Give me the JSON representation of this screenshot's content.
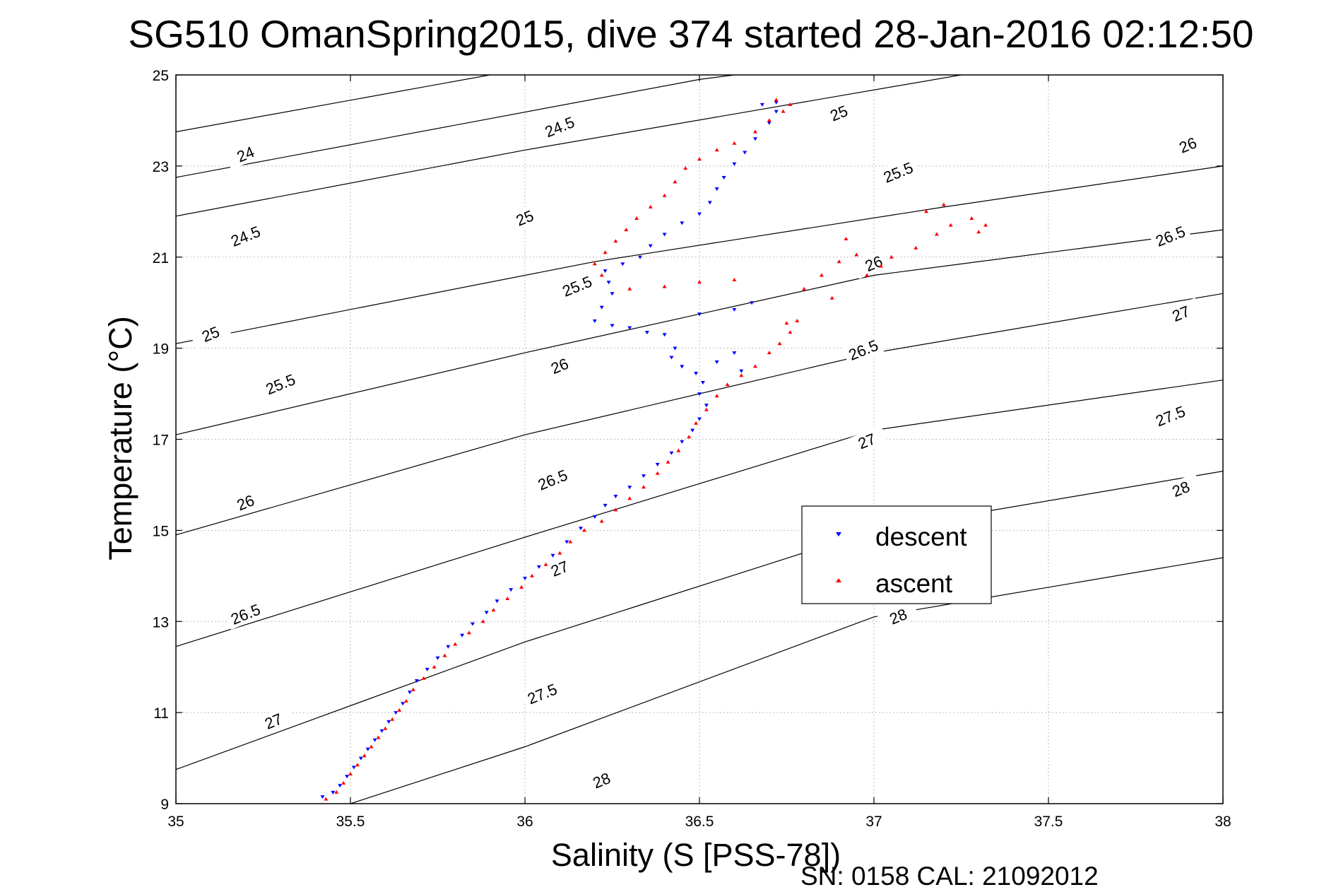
{
  "chart_data": {
    "type": "scatter",
    "title": "SG510 OmanSpring2015, dive 374 started 28-Jan-2016 02:12:50",
    "xlabel": "Salinity (S [PSS-78])",
    "ylabel": "Temperature (°C)",
    "xlim": [
      35,
      38
    ],
    "ylim": [
      9,
      25
    ],
    "x_ticks": [
      "35",
      "35.5",
      "36",
      "36.5",
      "37",
      "37.5",
      "38"
    ],
    "y_ticks": [
      "9",
      "11",
      "13",
      "15",
      "17",
      "19",
      "21",
      "23",
      "25"
    ],
    "grid": true,
    "legend": {
      "placement": "right",
      "entries": [
        {
          "label": "descent",
          "color": "#0000ff",
          "marker": "triangle-down"
        },
        {
          "label": "ascent",
          "color": "#ff0000",
          "marker": "triangle-up"
        }
      ]
    },
    "contours": [
      {
        "label": "24",
        "lines": [
          [
            [
              35,
              23.75
            ],
            [
              35.9,
              25
            ]
          ]
        ]
      },
      {
        "label": "24.5",
        "lines": [
          [
            [
              35,
              22.75
            ],
            [
              36.5,
              24.9
            ],
            [
              36.6,
              25
            ]
          ]
        ]
      },
      {
        "label": "25",
        "lines": [
          [
            [
              35,
              21.9
            ],
            [
              36.0,
              23.35
            ],
            [
              37.25,
              25
            ]
          ]
        ]
      },
      {
        "label": "25.5",
        "lines": [
          [
            [
              35,
              19.1
            ],
            [
              36.2,
              20.9
            ],
            [
              37.2,
              22.1
            ],
            [
              38,
              23
            ]
          ]
        ]
      },
      {
        "label": "26",
        "lines": [
          [
            [
              35,
              17.1
            ],
            [
              36.0,
              18.9
            ],
            [
              37.0,
              20.6
            ],
            [
              38,
              21.6
            ]
          ]
        ]
      },
      {
        "label": "26.5",
        "lines": [
          [
            [
              35,
              14.9
            ],
            [
              36.0,
              17.1
            ],
            [
              37.0,
              18.9
            ],
            [
              38,
              20.2
            ]
          ]
        ]
      },
      {
        "label": "27",
        "lines": [
          [
            [
              35,
              12.45
            ],
            [
              36.0,
              14.85
            ],
            [
              37.0,
              17.2
            ],
            [
              38,
              18.3
            ]
          ]
        ]
      },
      {
        "label": "27.5",
        "lines": [
          [
            [
              35,
              9.75
            ],
            [
              36.0,
              12.55
            ],
            [
              37.0,
              15.0
            ],
            [
              38,
              16.3
            ]
          ]
        ]
      },
      {
        "label": "28",
        "lines": [
          [
            [
              35.5,
              9.0
            ],
            [
              36.0,
              10.25
            ],
            [
              37.0,
              13.1
            ],
            [
              38,
              14.4
            ]
          ]
        ]
      }
    ],
    "contour_labels": [
      {
        "text": "24",
        "x": 35.2,
        "y": 23.25
      },
      {
        "text": "24.5",
        "x": 36.1,
        "y": 23.85
      },
      {
        "text": "25",
        "x": 36.9,
        "y": 24.15
      },
      {
        "text": "24.5",
        "x": 35.2,
        "y": 21.45
      },
      {
        "text": "25",
        "x": 36.0,
        "y": 21.85
      },
      {
        "text": "25.5",
        "x": 37.07,
        "y": 22.85
      },
      {
        "text": "26",
        "x": 37.9,
        "y": 23.45
      },
      {
        "text": "25",
        "x": 35.1,
        "y": 19.3
      },
      {
        "text": "25.5",
        "x": 36.15,
        "y": 20.35
      },
      {
        "text": "26",
        "x": 37.0,
        "y": 20.85
      },
      {
        "text": "26.5",
        "x": 37.85,
        "y": 21.45
      },
      {
        "text": "25.5",
        "x": 35.3,
        "y": 18.2
      },
      {
        "text": "26",
        "x": 36.1,
        "y": 18.6
      },
      {
        "text": "26.5",
        "x": 36.97,
        "y": 18.95
      },
      {
        "text": "27",
        "x": 37.88,
        "y": 19.75
      },
      {
        "text": "26",
        "x": 35.2,
        "y": 15.6
      },
      {
        "text": "26.5",
        "x": 36.08,
        "y": 16.1
      },
      {
        "text": "27",
        "x": 36.98,
        "y": 16.95
      },
      {
        "text": "27.5",
        "x": 37.85,
        "y": 17.5
      },
      {
        "text": "26.5",
        "x": 35.2,
        "y": 13.15
      },
      {
        "text": "27",
        "x": 36.1,
        "y": 14.15
      },
      {
        "text": "28",
        "x": 37.88,
        "y": 15.9
      },
      {
        "text": "27",
        "x": 35.28,
        "y": 10.8
      },
      {
        "text": "27.5",
        "x": 36.05,
        "y": 11.4
      },
      {
        "text": "28",
        "x": 37.07,
        "y": 13.1
      },
      {
        "text": "28",
        "x": 36.22,
        "y": 9.5
      }
    ],
    "series": [
      {
        "name": "descent",
        "color": "#0000ff",
        "marker": "triangle-down",
        "points": [
          [
            35.42,
            9.15
          ],
          [
            35.45,
            9.25
          ],
          [
            35.47,
            9.4
          ],
          [
            35.49,
            9.6
          ],
          [
            35.51,
            9.8
          ],
          [
            35.53,
            10.0
          ],
          [
            35.55,
            10.2
          ],
          [
            35.57,
            10.4
          ],
          [
            35.59,
            10.6
          ],
          [
            35.61,
            10.8
          ],
          [
            35.63,
            11.0
          ],
          [
            35.65,
            11.2
          ],
          [
            35.67,
            11.45
          ],
          [
            35.69,
            11.7
          ],
          [
            35.72,
            11.95
          ],
          [
            35.75,
            12.2
          ],
          [
            35.78,
            12.45
          ],
          [
            35.82,
            12.7
          ],
          [
            35.85,
            12.95
          ],
          [
            35.89,
            13.2
          ],
          [
            35.92,
            13.45
          ],
          [
            35.96,
            13.7
          ],
          [
            36.0,
            13.95
          ],
          [
            36.04,
            14.2
          ],
          [
            36.08,
            14.45
          ],
          [
            36.12,
            14.75
          ],
          [
            36.16,
            15.05
          ],
          [
            36.2,
            15.3
          ],
          [
            36.23,
            15.55
          ],
          [
            36.26,
            15.75
          ],
          [
            36.3,
            15.95
          ],
          [
            36.34,
            16.2
          ],
          [
            36.38,
            16.45
          ],
          [
            36.42,
            16.7
          ],
          [
            36.45,
            16.95
          ],
          [
            36.48,
            17.2
          ],
          [
            36.5,
            17.45
          ],
          [
            36.52,
            17.75
          ],
          [
            36.5,
            18.0
          ],
          [
            36.51,
            18.25
          ],
          [
            36.49,
            18.45
          ],
          [
            36.45,
            18.6
          ],
          [
            36.42,
            18.8
          ],
          [
            36.43,
            19.0
          ],
          [
            36.4,
            19.3
          ],
          [
            36.35,
            19.35
          ],
          [
            36.3,
            19.45
          ],
          [
            36.25,
            19.5
          ],
          [
            36.2,
            19.6
          ],
          [
            36.22,
            19.9
          ],
          [
            36.25,
            20.2
          ],
          [
            36.24,
            20.45
          ],
          [
            36.23,
            20.7
          ],
          [
            36.28,
            20.85
          ],
          [
            36.33,
            21.0
          ],
          [
            36.36,
            21.25
          ],
          [
            36.4,
            21.5
          ],
          [
            36.45,
            21.75
          ],
          [
            36.5,
            21.95
          ],
          [
            36.53,
            22.2
          ],
          [
            36.55,
            22.5
          ],
          [
            36.57,
            22.75
          ],
          [
            36.6,
            23.05
          ],
          [
            36.63,
            23.3
          ],
          [
            36.66,
            23.6
          ],
          [
            36.7,
            23.95
          ],
          [
            36.72,
            24.2
          ],
          [
            36.68,
            24.35
          ],
          [
            36.72,
            24.4
          ],
          [
            36.5,
            19.75
          ],
          [
            36.6,
            19.85
          ],
          [
            36.65,
            20.0
          ],
          [
            36.55,
            18.7
          ],
          [
            36.6,
            18.9
          ],
          [
            36.62,
            18.5
          ]
        ]
      },
      {
        "name": "ascent",
        "color": "#ff0000",
        "marker": "triangle-up",
        "points": [
          [
            35.43,
            9.1
          ],
          [
            35.46,
            9.25
          ],
          [
            35.48,
            9.45
          ],
          [
            35.5,
            9.65
          ],
          [
            35.52,
            9.85
          ],
          [
            35.54,
            10.05
          ],
          [
            35.56,
            10.25
          ],
          [
            35.58,
            10.45
          ],
          [
            35.6,
            10.65
          ],
          [
            35.62,
            10.85
          ],
          [
            35.64,
            11.05
          ],
          [
            35.66,
            11.25
          ],
          [
            35.68,
            11.5
          ],
          [
            35.71,
            11.75
          ],
          [
            35.74,
            12.0
          ],
          [
            35.77,
            12.25
          ],
          [
            35.8,
            12.5
          ],
          [
            35.84,
            12.75
          ],
          [
            35.88,
            13.0
          ],
          [
            35.91,
            13.25
          ],
          [
            35.95,
            13.5
          ],
          [
            35.99,
            13.75
          ],
          [
            36.02,
            14.0
          ],
          [
            36.06,
            14.25
          ],
          [
            36.1,
            14.5
          ],
          [
            36.13,
            14.75
          ],
          [
            36.17,
            15.0
          ],
          [
            36.22,
            15.2
          ],
          [
            36.26,
            15.45
          ],
          [
            36.3,
            15.7
          ],
          [
            36.34,
            15.95
          ],
          [
            36.38,
            16.25
          ],
          [
            36.41,
            16.5
          ],
          [
            36.44,
            16.75
          ],
          [
            36.47,
            17.05
          ],
          [
            36.49,
            17.35
          ],
          [
            36.52,
            17.65
          ],
          [
            36.55,
            17.95
          ],
          [
            36.58,
            18.2
          ],
          [
            36.62,
            18.4
          ],
          [
            36.66,
            18.6
          ],
          [
            36.7,
            18.9
          ],
          [
            36.73,
            19.1
          ],
          [
            36.76,
            19.35
          ],
          [
            36.78,
            19.6
          ],
          [
            36.75,
            19.55
          ],
          [
            36.8,
            20.3
          ],
          [
            36.85,
            20.6
          ],
          [
            36.9,
            20.9
          ],
          [
            36.95,
            21.05
          ],
          [
            37.05,
            21.0
          ],
          [
            37.12,
            21.2
          ],
          [
            37.18,
            21.5
          ],
          [
            37.22,
            21.7
          ],
          [
            37.28,
            21.85
          ],
          [
            37.32,
            21.7
          ],
          [
            37.15,
            22.0
          ],
          [
            37.2,
            22.15
          ],
          [
            36.6,
            20.5
          ],
          [
            36.5,
            20.45
          ],
          [
            36.4,
            20.35
          ],
          [
            36.3,
            20.3
          ],
          [
            36.22,
            20.6
          ],
          [
            36.2,
            20.85
          ],
          [
            36.23,
            21.1
          ],
          [
            36.26,
            21.35
          ],
          [
            36.29,
            21.6
          ],
          [
            36.32,
            21.85
          ],
          [
            36.36,
            22.1
          ],
          [
            36.4,
            22.35
          ],
          [
            36.43,
            22.65
          ],
          [
            36.46,
            22.95
          ],
          [
            36.5,
            23.15
          ],
          [
            36.55,
            23.35
          ],
          [
            36.6,
            23.5
          ],
          [
            36.66,
            23.75
          ],
          [
            36.7,
            24.0
          ],
          [
            36.74,
            24.2
          ],
          [
            36.76,
            24.35
          ],
          [
            36.72,
            24.45
          ],
          [
            37.3,
            21.55
          ],
          [
            37.02,
            20.8
          ],
          [
            36.88,
            20.1
          ],
          [
            36.92,
            21.4
          ],
          [
            36.98,
            20.6
          ]
        ]
      }
    ]
  },
  "footer": {
    "serial_text": "SN: 0158  CAL: 21092012"
  }
}
